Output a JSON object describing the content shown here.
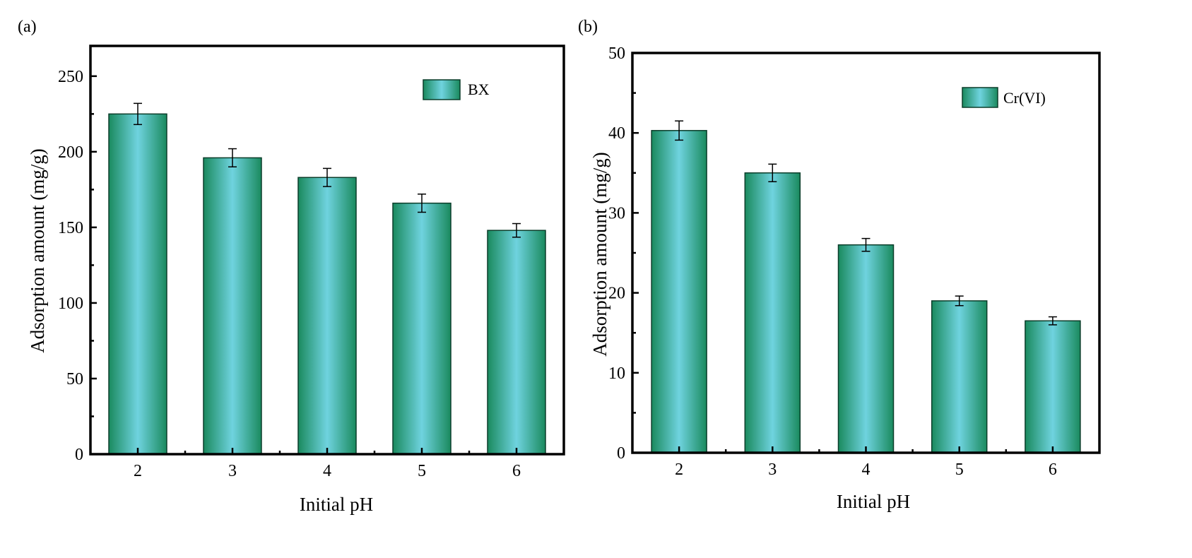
{
  "chart_data": [
    {
      "panel_label": "(a)",
      "type": "bar",
      "xlabel": "Initial pH",
      "ylabel": "Adsorption amount (mg/g)",
      "ylim": [
        0,
        270
      ],
      "yticks": [
        0,
        50,
        100,
        150,
        200,
        250
      ],
      "categories": [
        "2",
        "3",
        "4",
        "5",
        "6"
      ],
      "series": [
        {
          "name": "BX",
          "values": [
            225,
            196,
            183,
            166,
            148
          ],
          "errors": [
            7,
            6,
            6,
            6,
            4.5
          ]
        }
      ],
      "legend": "top-right",
      "grid": false
    },
    {
      "panel_label": "(b)",
      "type": "bar",
      "xlabel": "Initial pH",
      "ylabel": "Adsorption amount (mg/g)",
      "ylim": [
        0,
        50
      ],
      "yticks": [
        0,
        10,
        20,
        30,
        40,
        50
      ],
      "categories": [
        "2",
        "3",
        "4",
        "5",
        "6"
      ],
      "series": [
        {
          "name": "Cr(VI)",
          "values": [
            40.3,
            35,
            26,
            19,
            16.5
          ],
          "errors": [
            1.2,
            1.1,
            0.8,
            0.6,
            0.5
          ]
        }
      ],
      "legend": "top-right",
      "grid": false
    }
  ],
  "colors": {
    "bar_edge": "#1a8a5e",
    "bar_center": "#6fd3df",
    "axis": "#000000"
  }
}
